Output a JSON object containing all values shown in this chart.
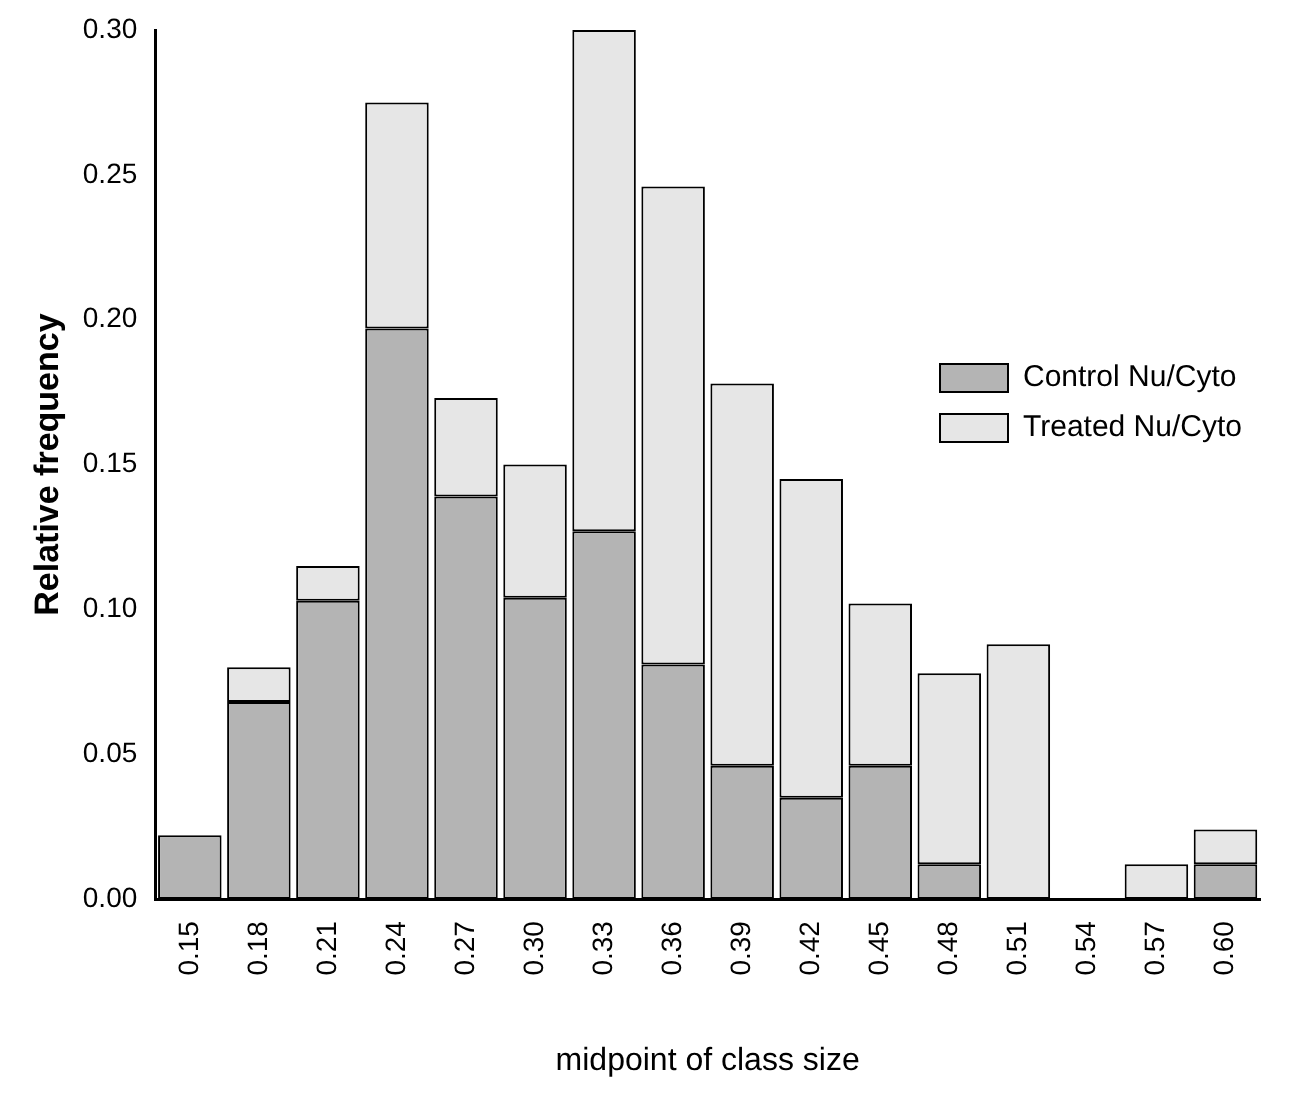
{
  "chart_data": {
    "type": "bar",
    "stacked": true,
    "xlabel": "midpoint of class size",
    "ylabel": "Relative frequency",
    "categories": [
      "0.15",
      "0.18",
      "0.21",
      "0.24",
      "0.27",
      "0.30",
      "0.33",
      "0.36",
      "0.39",
      "0.42",
      "0.45",
      "0.48",
      "0.51",
      "0.54",
      "0.57",
      "0.60"
    ],
    "series": [
      {
        "name": "Control Nu/Cyto",
        "color": "#b4b4b4",
        "values": [
          0.022,
          0.068,
          0.103,
          0.197,
          0.139,
          0.104,
          0.127,
          0.081,
          0.046,
          0.035,
          0.046,
          0.012,
          0,
          0,
          0,
          0.012
        ]
      },
      {
        "name": "Treated Nu/Cyto",
        "color": "#e6e6e6",
        "values": [
          0,
          0.012,
          0.012,
          0.078,
          0.034,
          0.046,
          0.173,
          0.165,
          0.132,
          0.11,
          0.056,
          0.066,
          0.088,
          0,
          0.012,
          0.012
        ]
      }
    ],
    "ylim": [
      0,
      0.3
    ],
    "yticks": [
      {
        "value": 0,
        "label": "0.00"
      },
      {
        "value": 0.05,
        "label": "0.05"
      },
      {
        "value": 0.1,
        "label": "0.10"
      },
      {
        "value": 0.15,
        "label": "0.15"
      },
      {
        "value": 0.2,
        "label": "0.20"
      },
      {
        "value": 0.25,
        "label": "0.25"
      },
      {
        "value": 0.3,
        "label": "0.30"
      }
    ],
    "grid": false,
    "legend": "top right"
  }
}
